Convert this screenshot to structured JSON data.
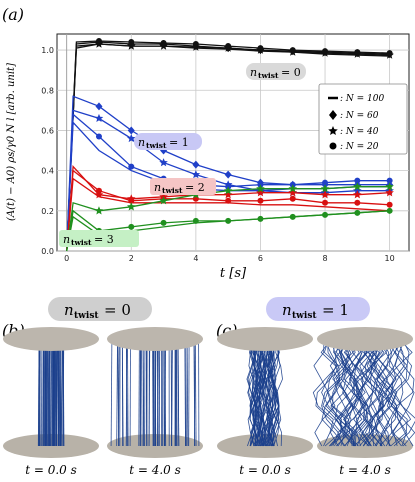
{
  "chart_data": {
    "type": "line",
    "panel_label": "(a)",
    "xlabel": "t [s]",
    "ylabel": "(A(t) − A0) ρs/γ0 N l [arb. unit]",
    "xlim": [
      -0.3,
      10.6
    ],
    "ylim": [
      0,
      1.08
    ],
    "xticks": [
      "0",
      "2",
      "4",
      "6",
      "8",
      "10"
    ],
    "yticks": [
      "0.0",
      "0.2",
      "0.4",
      "0.6",
      "0.8",
      "1.0"
    ],
    "grid": true,
    "legend_position": "right",
    "legend": [
      {
        "marker": "line",
        "label": ": N = 100"
      },
      {
        "marker": "diamond",
        "label": ": N = 60"
      },
      {
        "marker": "star",
        "label": ": N = 40"
      },
      {
        "marker": "circle",
        "label": ": N = 20"
      }
    ],
    "annotations": [
      {
        "label": "n",
        "sub": "twist",
        "value": "= 0",
        "color": "#d9d9d9"
      },
      {
        "label": "n",
        "sub": "twist",
        "value": "= 1",
        "color": "#c8c8f5"
      },
      {
        "label": "n",
        "sub": "twist",
        "value": "= 2",
        "color": "#f5c5c5"
      },
      {
        "label": "n",
        "sub": "twist",
        "value": "= 3",
        "color": "#c5f0c5"
      }
    ],
    "series": [
      {
        "color": "#111111",
        "marker": "diamond",
        "x": [
          0.3,
          1,
          2,
          3,
          4,
          5,
          6,
          7,
          8,
          9,
          10
        ],
        "y": [
          1.03,
          1.04,
          1.03,
          1.03,
          1.02,
          1.01,
          1.0,
          0.995,
          0.99,
          0.985,
          0.98
        ]
      },
      {
        "color": "#111111",
        "marker": "star",
        "x": [
          0.3,
          1,
          2,
          3,
          4,
          5,
          6,
          7,
          8,
          9,
          10
        ],
        "y": [
          1.02,
          1.03,
          1.02,
          1.02,
          1.015,
          1.01,
          1.0,
          0.99,
          0.985,
          0.98,
          0.975
        ]
      },
      {
        "color": "#111111",
        "marker": "circle",
        "x": [
          0.3,
          1,
          2,
          3,
          4,
          5,
          6,
          7,
          8,
          9,
          10
        ],
        "y": [
          1.04,
          1.045,
          1.04,
          1.035,
          1.03,
          1.02,
          1.01,
          1.0,
          0.995,
          0.99,
          0.985
        ]
      },
      {
        "color": "#111111",
        "marker": "line",
        "x": [
          0.3,
          1,
          2,
          3,
          4,
          5,
          6,
          7,
          8,
          9,
          10
        ],
        "y": [
          1.01,
          1.03,
          1.02,
          1.02,
          1.01,
          1.005,
          0.995,
          0.99,
          0.98,
          0.975,
          0.97
        ]
      },
      {
        "color": "#2040c8",
        "marker": "diamond",
        "x": [
          0.2,
          1,
          2,
          3,
          4,
          5,
          6,
          7,
          8,
          9,
          10
        ],
        "y": [
          0.77,
          0.72,
          0.6,
          0.5,
          0.43,
          0.38,
          0.34,
          0.33,
          0.33,
          0.33,
          0.33
        ]
      },
      {
        "color": "#2040c8",
        "marker": "star",
        "x": [
          0.2,
          1,
          2,
          3,
          4,
          5,
          6,
          7,
          8,
          9,
          10
        ],
        "y": [
          0.7,
          0.66,
          0.56,
          0.44,
          0.38,
          0.33,
          0.3,
          0.29,
          0.29,
          0.3,
          0.3
        ]
      },
      {
        "color": "#2040c8",
        "marker": "circle",
        "x": [
          0.2,
          1,
          2,
          3,
          4,
          5,
          6,
          7,
          8,
          9,
          10
        ],
        "y": [
          0.68,
          0.57,
          0.42,
          0.36,
          0.33,
          0.32,
          0.33,
          0.33,
          0.34,
          0.35,
          0.35
        ]
      },
      {
        "color": "#2040c8",
        "marker": "line",
        "x": [
          0.2,
          1,
          2,
          3,
          4,
          5,
          6,
          7,
          8,
          9,
          10
        ],
        "y": [
          0.64,
          0.5,
          0.4,
          0.34,
          0.31,
          0.3,
          0.3,
          0.31,
          0.31,
          0.32,
          0.32
        ]
      },
      {
        "color": "#d81010",
        "marker": "star",
        "x": [
          0.2,
          1,
          2,
          3,
          4,
          5,
          6,
          7,
          8,
          9,
          10
        ],
        "y": [
          0.42,
          0.28,
          0.26,
          0.27,
          0.28,
          0.28,
          0.29,
          0.29,
          0.28,
          0.28,
          0.29
        ]
      },
      {
        "color": "#d81010",
        "marker": "circle",
        "x": [
          0.2,
          1,
          2,
          3,
          4,
          5,
          6,
          7,
          8,
          9,
          10
        ],
        "y": [
          0.4,
          0.3,
          0.25,
          0.26,
          0.26,
          0.25,
          0.25,
          0.26,
          0.24,
          0.24,
          0.23
        ]
      },
      {
        "color": "#d81010",
        "marker": "line",
        "x": [
          0.2,
          1,
          2,
          3,
          4,
          5,
          6,
          7,
          8,
          9,
          10
        ],
        "y": [
          0.36,
          0.27,
          0.24,
          0.24,
          0.24,
          0.24,
          0.23,
          0.23,
          0.22,
          0.21,
          0.2
        ]
      },
      {
        "color": "#20901f",
        "marker": "star",
        "x": [
          0.2,
          1,
          2,
          3,
          4,
          5,
          6,
          7,
          8,
          9,
          10
        ],
        "y": [
          0.24,
          0.2,
          0.22,
          0.25,
          0.28,
          0.3,
          0.31,
          0.31,
          0.31,
          0.32,
          0.32
        ]
      },
      {
        "color": "#20901f",
        "marker": "circle",
        "x": [
          0.2,
          1,
          2,
          3,
          4,
          5,
          6,
          7,
          8,
          9,
          10
        ],
        "y": [
          0.2,
          0.1,
          0.12,
          0.14,
          0.15,
          0.15,
          0.16,
          0.17,
          0.18,
          0.19,
          0.2
        ]
      },
      {
        "color": "#20901f",
        "marker": "line",
        "x": [
          0.2,
          1,
          2,
          3,
          4,
          5,
          6,
          7,
          8,
          9,
          10
        ],
        "y": [
          0.17,
          0.08,
          0.1,
          0.12,
          0.14,
          0.15,
          0.16,
          0.17,
          0.18,
          0.19,
          0.2
        ]
      }
    ]
  },
  "panel_b": {
    "label": "(b)",
    "badge": {
      "label": "n",
      "sub": "twist",
      "value": "= 0"
    },
    "captions": [
      "t = 0.0 s",
      "t = 4.0 s"
    ]
  },
  "panel_c": {
    "label": "(c)",
    "badge": {
      "label": "n",
      "sub": "twist",
      "value": "= 1"
    },
    "captions": [
      "t = 0.0 s",
      "t = 4.0 s"
    ]
  }
}
